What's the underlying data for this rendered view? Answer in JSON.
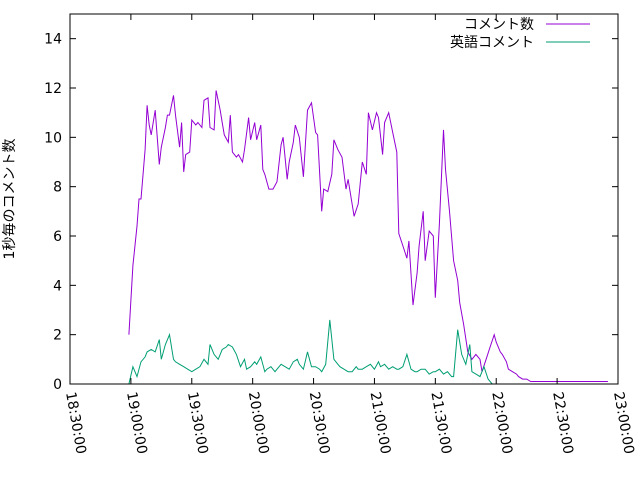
{
  "chart_data": {
    "type": "line",
    "xlabel": "",
    "ylabel": "1秒毎のコメント数",
    "ylim": [
      0,
      15
    ],
    "y_ticks": [
      0,
      2,
      4,
      6,
      8,
      10,
      12,
      14
    ],
    "x_range_minutes": [
      1110,
      1380
    ],
    "x_ticks": [
      "18:30:00",
      "19:00:00",
      "19:30:00",
      "20:00:00",
      "20:30:00",
      "21:00:00",
      "21:30:00",
      "22:00:00",
      "22:30:00",
      "23:00:00"
    ],
    "x_ticks_minutes": [
      1110,
      1140,
      1170,
      1200,
      1230,
      1260,
      1290,
      1320,
      1350,
      1380
    ],
    "grid": false,
    "legend_position": "top-right",
    "series": [
      {
        "name": "コメント数",
        "color": "#9400d3",
        "x_minutes": [
          1139,
          1141,
          1143,
          1144,
          1145,
          1147,
          1148,
          1149,
          1150,
          1152,
          1154,
          1155,
          1157,
          1158,
          1159,
          1161,
          1162,
          1164,
          1165,
          1166,
          1167,
          1169,
          1170,
          1172,
          1173,
          1175,
          1176,
          1178,
          1179,
          1181,
          1182,
          1184,
          1185,
          1186,
          1188,
          1189,
          1190,
          1192,
          1193,
          1195,
          1196,
          1198,
          1199,
          1201,
          1202,
          1204,
          1205,
          1206,
          1208,
          1210,
          1212,
          1214,
          1215,
          1217,
          1218,
          1220,
          1221,
          1223,
          1225,
          1227,
          1229,
          1231,
          1232,
          1234,
          1235,
          1237,
          1239,
          1240,
          1242,
          1244,
          1246,
          1247,
          1249,
          1250,
          1252,
          1254,
          1256,
          1257,
          1259,
          1261,
          1262,
          1264,
          1265,
          1267,
          1269,
          1271,
          1272,
          1274,
          1276,
          1277,
          1279,
          1281,
          1282,
          1284,
          1285,
          1287,
          1289,
          1290,
          1292,
          1294,
          1295,
          1297,
          1299,
          1301,
          1302,
          1304,
          1306,
          1308,
          1310,
          1312,
          1313,
          1315,
          1317,
          1319,
          1320,
          1322,
          1323,
          1325,
          1326,
          1328,
          1330,
          1331,
          1333,
          1335,
          1337,
          1338,
          1340,
          1342,
          1344,
          1345,
          1347,
          1349,
          1351,
          1352,
          1354,
          1356,
          1358,
          1360,
          1362,
          1364,
          1366,
          1368,
          1370,
          1372,
          1374,
          1375
        ],
        "values": [
          2.0,
          4.8,
          6.4,
          7.5,
          7.5,
          9.5,
          11.3,
          10.5,
          10.1,
          11.1,
          8.9,
          9.6,
          10.4,
          10.9,
          10.9,
          11.7,
          10.9,
          9.6,
          10.6,
          8.6,
          9.3,
          9.4,
          10.7,
          10.5,
          10.6,
          10.4,
          11.5,
          11.6,
          10.4,
          10.3,
          11.9,
          11.1,
          10.6,
          10.1,
          9.8,
          10.9,
          9.4,
          9.2,
          9.3,
          9.0,
          9.5,
          10.8,
          9.9,
          10.6,
          9.9,
          10.5,
          8.7,
          8.5,
          7.9,
          7.9,
          8.2,
          9.7,
          10.0,
          8.3,
          9.0,
          9.8,
          10.5,
          10.0,
          8.4,
          11.1,
          11.4,
          10.2,
          10.1,
          7.0,
          7.9,
          7.8,
          8.5,
          9.9,
          9.5,
          9.2,
          7.9,
          8.3,
          7.3,
          6.8,
          7.3,
          9.0,
          8.5,
          11.0,
          10.3,
          11.0,
          10.8,
          9.3,
          10.6,
          11.0,
          10.2,
          9.4,
          6.1,
          5.6,
          5.1,
          5.8,
          3.2,
          4.5,
          5.6,
          7.0,
          5.0,
          6.2,
          6.0,
          3.5,
          6.5,
          10.3,
          8.7,
          7.0,
          5.0,
          4.2,
          3.3,
          2.4,
          1.3,
          1.0,
          1.2,
          1.0,
          0.5,
          1.0,
          1.5,
          2.0,
          1.7,
          1.3,
          1.2,
          0.9,
          0.6,
          0.5,
          0.4,
          0.3,
          0.2,
          0.2,
          0.1,
          0.1,
          0.1,
          0.1,
          0.1,
          0.1,
          0.1,
          0.1,
          0.1,
          0.1,
          0.1,
          0.1,
          0.1,
          0.1,
          0.1,
          0.1,
          0.1,
          0.1,
          0.1,
          0.1,
          0.1,
          0.1
        ]
      },
      {
        "name": "英語コメント",
        "color": "#009e73",
        "x_minutes": [
          1139,
          1141,
          1143,
          1145,
          1147,
          1148,
          1150,
          1152,
          1154,
          1155,
          1157,
          1159,
          1161,
          1162,
          1164,
          1166,
          1168,
          1170,
          1172,
          1174,
          1176,
          1178,
          1179,
          1181,
          1183,
          1185,
          1187,
          1188,
          1190,
          1192,
          1194,
          1196,
          1197,
          1199,
          1201,
          1202,
          1204,
          1206,
          1207,
          1209,
          1211,
          1212,
          1214,
          1216,
          1218,
          1220,
          1222,
          1223,
          1225,
          1227,
          1229,
          1231,
          1233,
          1234,
          1236,
          1238,
          1240,
          1242,
          1243,
          1245,
          1247,
          1249,
          1251,
          1252,
          1254,
          1256,
          1258,
          1260,
          1262,
          1263,
          1265,
          1267,
          1269,
          1271,
          1272,
          1274,
          1276,
          1278,
          1280,
          1281,
          1283,
          1285,
          1287,
          1289,
          1290,
          1292,
          1294,
          1296,
          1298,
          1299,
          1301,
          1303,
          1305,
          1307,
          1308,
          1310,
          1312,
          1314,
          1316,
          1318,
          1320,
          1321,
          1323,
          1325,
          1327,
          1328,
          1330,
          1332,
          1334,
          1336,
          1338,
          1340,
          1342,
          1344,
          1346,
          1348,
          1350,
          1352,
          1354,
          1356,
          1358,
          1360,
          1362,
          1364,
          1366,
          1368,
          1370
        ],
        "values": [
          0.0,
          0.7,
          0.3,
          0.9,
          1.1,
          1.3,
          1.4,
          1.3,
          1.8,
          1.0,
          1.6,
          2.0,
          1.0,
          0.9,
          0.8,
          0.7,
          0.6,
          0.5,
          0.6,
          0.7,
          1.0,
          0.8,
          1.6,
          1.2,
          1.0,
          1.4,
          1.5,
          1.6,
          1.5,
          1.2,
          0.7,
          1.0,
          0.6,
          0.7,
          0.9,
          0.8,
          1.1,
          0.5,
          0.6,
          0.7,
          0.5,
          0.6,
          0.8,
          0.7,
          0.6,
          0.9,
          1.0,
          0.8,
          0.6,
          1.3,
          0.7,
          0.7,
          0.6,
          0.5,
          0.8,
          2.6,
          1.0,
          0.8,
          0.7,
          0.6,
          0.5,
          0.5,
          0.7,
          0.6,
          0.6,
          0.7,
          0.8,
          0.6,
          0.9,
          0.7,
          0.8,
          0.6,
          0.7,
          0.6,
          0.6,
          0.7,
          1.2,
          0.6,
          0.5,
          0.5,
          0.6,
          0.6,
          0.4,
          0.5,
          0.5,
          0.6,
          0.4,
          0.5,
          0.3,
          0.3,
          2.2,
          1.2,
          0.8,
          1.6,
          0.5,
          0.4,
          0.3,
          0.7,
          0.2,
          0.0,
          0.0,
          0.0,
          0.0,
          0.0,
          0.0,
          0.0,
          0.0,
          0.0,
          0.0,
          0.0,
          0.0,
          0.0,
          0.0,
          0.0,
          0.0,
          0.0,
          0.0,
          0.0,
          0.0,
          0.0,
          0.0,
          0.0,
          0.0,
          0.0,
          0.0,
          0.0,
          0.0
        ]
      }
    ]
  }
}
